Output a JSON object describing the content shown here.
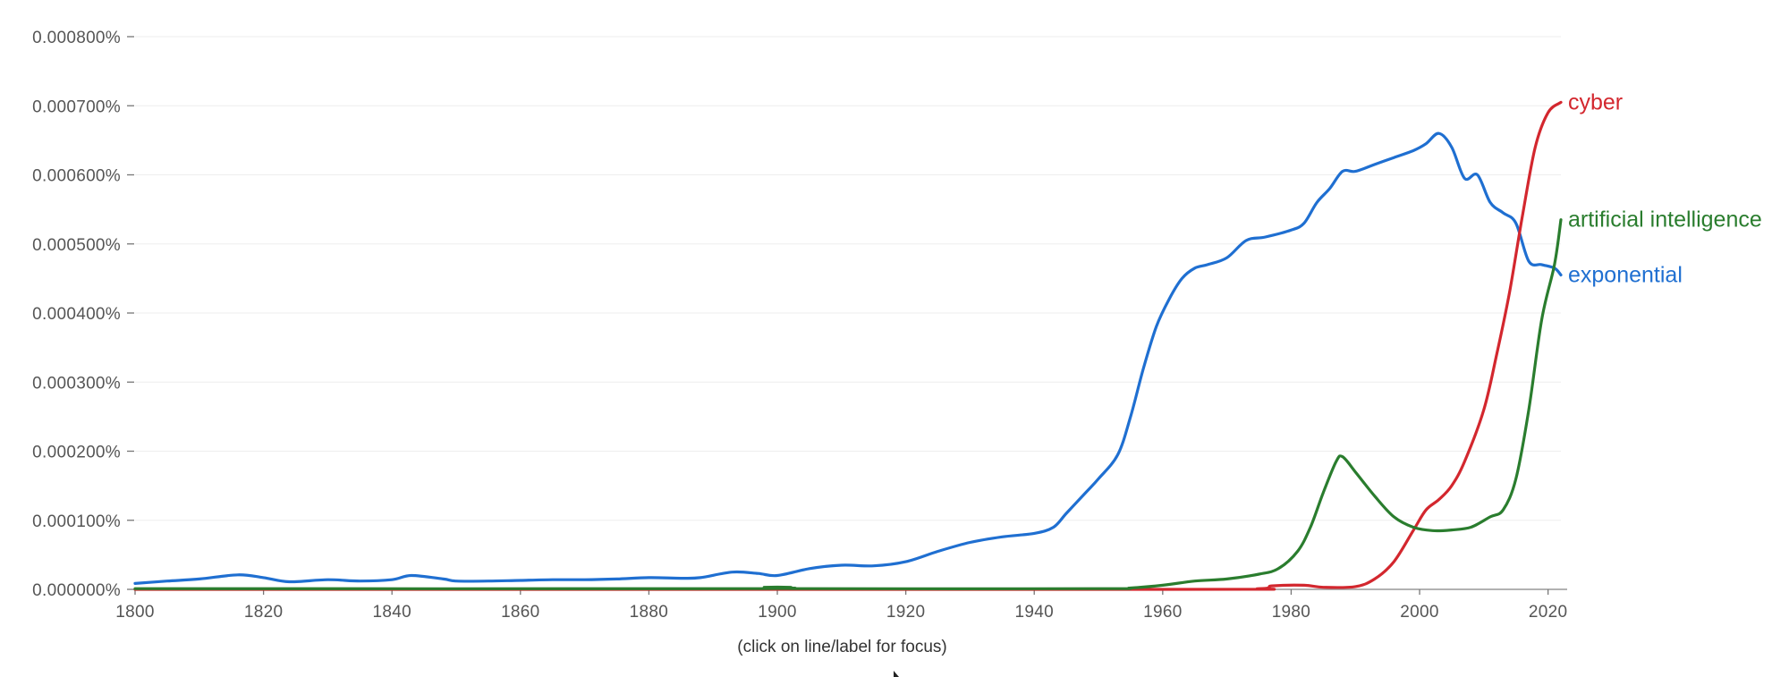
{
  "hint": "(click on line/label for focus)",
  "chart_data": {
    "type": "line",
    "title": "",
    "xlabel": "",
    "ylabel": "",
    "xlim": [
      1800,
      2022
    ],
    "ylim": [
      0,
      0.0008
    ],
    "grid": true,
    "legend": "inline labels at line ends (right)",
    "x_ticks": [
      1800,
      1820,
      1840,
      1860,
      1880,
      1900,
      1920,
      1940,
      1960,
      1980,
      2000,
      2020
    ],
    "x_tick_labels": [
      "1800",
      "1820",
      "1840",
      "1860",
      "1880",
      "1900",
      "1920",
      "1940",
      "1960",
      "1980",
      "2000",
      "2020"
    ],
    "y_ticks": [
      0,
      0.0001,
      0.0002,
      0.0003,
      0.0004,
      0.0005,
      0.0006,
      0.0007,
      0.0008
    ],
    "y_tick_labels": [
      "0.000000%",
      "0.000100%",
      "0.000200%",
      "0.000300%",
      "0.000400%",
      "0.000500%",
      "0.000600%",
      "0.000700%",
      "0.000800%"
    ],
    "series": [
      {
        "name": "exponential",
        "color": "#1f6fd1",
        "points": [
          [
            1800,
            8.5e-06
          ],
          [
            1805,
            1.2e-05
          ],
          [
            1810,
            1.5e-05
          ],
          [
            1816,
            2.1e-05
          ],
          [
            1820,
            1.7e-05
          ],
          [
            1824,
            1.1e-05
          ],
          [
            1830,
            1.4e-05
          ],
          [
            1835,
            1.2e-05
          ],
          [
            1840,
            1.4e-05
          ],
          [
            1843,
            2e-05
          ],
          [
            1848,
            1.5e-05
          ],
          [
            1850,
            1.2e-05
          ],
          [
            1855,
            1.2e-05
          ],
          [
            1860,
            1.3e-05
          ],
          [
            1865,
            1.4e-05
          ],
          [
            1870,
            1.4e-05
          ],
          [
            1875,
            1.5e-05
          ],
          [
            1880,
            1.7e-05
          ],
          [
            1885,
            1.6e-05
          ],
          [
            1888,
            1.7e-05
          ],
          [
            1893,
            2.5e-05
          ],
          [
            1897,
            2.3e-05
          ],
          [
            1900,
            2e-05
          ],
          [
            1905,
            3e-05
          ],
          [
            1910,
            3.5e-05
          ],
          [
            1915,
            3.4e-05
          ],
          [
            1920,
            4e-05
          ],
          [
            1925,
            5.5e-05
          ],
          [
            1930,
            6.8e-05
          ],
          [
            1935,
            7.6e-05
          ],
          [
            1940,
            8.1e-05
          ],
          [
            1943,
            9e-05
          ],
          [
            1945,
            0.00011
          ],
          [
            1948,
            0.00014
          ],
          [
            1950,
            0.00016
          ],
          [
            1953,
            0.000195
          ],
          [
            1955,
            0.00025
          ],
          [
            1957,
            0.00032
          ],
          [
            1959,
            0.00038
          ],
          [
            1961,
            0.00042
          ],
          [
            1963,
            0.00045
          ],
          [
            1965,
            0.000465
          ],
          [
            1967,
            0.00047
          ],
          [
            1970,
            0.00048
          ],
          [
            1973,
            0.000505
          ],
          [
            1976,
            0.00051
          ],
          [
            1980,
            0.00052
          ],
          [
            1982,
            0.00053
          ],
          [
            1984,
            0.00056
          ],
          [
            1986,
            0.00058
          ],
          [
            1988,
            0.000605
          ],
          [
            1990,
            0.000605
          ],
          [
            1993,
            0.000615
          ],
          [
            1996,
            0.000625
          ],
          [
            1999,
            0.000635
          ],
          [
            2001,
            0.000645
          ],
          [
            2003,
            0.00066
          ],
          [
            2005,
            0.00064
          ],
          [
            2007,
            0.000595
          ],
          [
            2009,
            0.0006
          ],
          [
            2011,
            0.00056
          ],
          [
            2013,
            0.000545
          ],
          [
            2015,
            0.00053
          ],
          [
            2017,
            0.000475
          ],
          [
            2019,
            0.00047
          ],
          [
            2021,
            0.000465
          ],
          [
            2022,
            0.000455
          ]
        ]
      },
      {
        "name": "cyber",
        "color": "#d3272e",
        "points": [
          [
            1800,
            0
          ],
          [
            1960,
            0
          ],
          [
            1975,
            1e-06
          ],
          [
            1977,
            5e-06
          ],
          [
            1982,
            6e-06
          ],
          [
            1985,
            3e-06
          ],
          [
            1990,
            4e-06
          ],
          [
            1993,
            1.5e-05
          ],
          [
            1996,
            4e-05
          ],
          [
            1999,
            8.5e-05
          ],
          [
            2001,
            0.000115
          ],
          [
            2003,
            0.00013
          ],
          [
            2005,
            0.00015
          ],
          [
            2007,
            0.000185
          ],
          [
            2010,
            0.00026
          ],
          [
            2012,
            0.00034
          ],
          [
            2014,
            0.00043
          ],
          [
            2016,
            0.00054
          ],
          [
            2018,
            0.00064
          ],
          [
            2020,
            0.00069
          ],
          [
            2022,
            0.000705
          ]
        ]
      },
      {
        "name": "artificial intelligence",
        "color": "#2a7d2e",
        "points": [
          [
            1800,
            1e-06
          ],
          [
            1895,
            1e-06
          ],
          [
            1898,
            3e-06
          ],
          [
            1902,
            3e-06
          ],
          [
            1905,
            1e-06
          ],
          [
            1950,
            1e-06
          ],
          [
            1955,
            2e-06
          ],
          [
            1960,
            6e-06
          ],
          [
            1965,
            1.2e-05
          ],
          [
            1970,
            1.5e-05
          ],
          [
            1975,
            2.2e-05
          ],
          [
            1978,
            3e-05
          ],
          [
            1981,
            5.5e-05
          ],
          [
            1983,
            9e-05
          ],
          [
            1985,
            0.00014
          ],
          [
            1987,
            0.000185
          ],
          [
            1988,
            0.000192
          ],
          [
            1990,
            0.00017
          ],
          [
            1993,
            0.000135
          ],
          [
            1996,
            0.000105
          ],
          [
            1999,
            9e-05
          ],
          [
            2002,
            8.5e-05
          ],
          [
            2005,
            8.6e-05
          ],
          [
            2008,
            9e-05
          ],
          [
            2011,
            0.000105
          ],
          [
            2013,
            0.000115
          ],
          [
            2015,
            0.00016
          ],
          [
            2017,
            0.00026
          ],
          [
            2019,
            0.00039
          ],
          [
            2021,
            0.00047
          ],
          [
            2022,
            0.000535
          ]
        ]
      }
    ]
  }
}
